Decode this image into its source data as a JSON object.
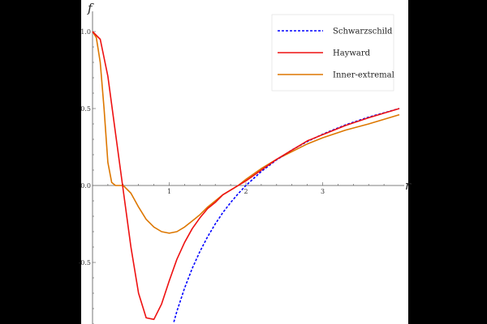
{
  "chart_data": {
    "type": "line",
    "xlabel": "r",
    "ylabel": "f",
    "xlim": [
      0,
      4
    ],
    "ylim": [
      -0.9,
      1.1
    ],
    "x_ticks": [
      {
        "value": 1,
        "label": "1"
      },
      {
        "value": 2,
        "label": "2"
      },
      {
        "value": 3,
        "label": "3"
      }
    ],
    "y_ticks": [
      {
        "value": 1.0,
        "label": "1.0"
      },
      {
        "value": 0.5,
        "label": "0.5"
      },
      {
        "value": 0.0,
        "label": "0.0"
      },
      {
        "value": -0.5,
        "label": "-0.5"
      }
    ],
    "grid": false,
    "legend_position": "top-right",
    "series": [
      {
        "name": "Schwarzschild",
        "color": "#0000ff",
        "style": "dashed",
        "x": [
          1.06,
          1.1,
          1.2,
          1.3,
          1.4,
          1.5,
          1.6,
          1.7,
          1.8,
          1.9,
          2.0,
          2.2,
          2.4,
          2.6,
          2.8,
          3.0,
          3.3,
          3.6,
          4.0
        ],
        "y": [
          -0.887,
          -0.818,
          -0.667,
          -0.538,
          -0.429,
          -0.333,
          -0.25,
          -0.176,
          -0.111,
          -0.053,
          0.0,
          0.091,
          0.167,
          0.231,
          0.286,
          0.333,
          0.394,
          0.444,
          0.5
        ]
      },
      {
        "name": "Hayward",
        "color": "#ee1111",
        "style": "solid",
        "x": [
          0,
          0.1,
          0.2,
          0.3,
          0.4,
          0.5,
          0.6,
          0.7,
          0.8,
          0.9,
          1.0,
          1.1,
          1.2,
          1.3,
          1.4,
          1.5,
          1.6,
          1.7,
          1.8,
          1.9,
          2.0,
          2.2,
          2.4,
          2.6,
          2.8,
          3.0,
          3.3,
          3.6,
          4.0
        ],
        "y": [
          1.0,
          0.95,
          0.71,
          0.34,
          -0.03,
          -0.4,
          -0.7,
          -0.86,
          -0.87,
          -0.77,
          -0.62,
          -0.48,
          -0.37,
          -0.28,
          -0.21,
          -0.15,
          -0.11,
          -0.06,
          -0.03,
          0.0,
          0.03,
          0.1,
          0.17,
          0.23,
          0.29,
          0.33,
          0.39,
          0.44,
          0.5
        ]
      },
      {
        "name": "Inner-extremal",
        "color": "#dd7700",
        "style": "solid",
        "x": [
          0,
          0.05,
          0.1,
          0.15,
          0.2,
          0.25,
          0.3,
          0.4,
          0.5,
          0.6,
          0.7,
          0.8,
          0.9,
          1.0,
          1.1,
          1.2,
          1.3,
          1.4,
          1.5,
          1.6,
          1.7,
          1.8,
          1.9,
          2.0,
          2.2,
          2.4,
          2.6,
          2.8,
          3.0,
          3.3,
          3.6,
          4.0
        ],
        "y": [
          1.0,
          0.96,
          0.8,
          0.5,
          0.15,
          0.02,
          0.0,
          0.0,
          -0.05,
          -0.14,
          -0.22,
          -0.27,
          -0.3,
          -0.31,
          -0.3,
          -0.27,
          -0.23,
          -0.19,
          -0.14,
          -0.1,
          -0.06,
          -0.03,
          0.0,
          0.04,
          0.11,
          0.17,
          0.22,
          0.27,
          0.31,
          0.36,
          0.4,
          0.46
        ]
      }
    ]
  }
}
